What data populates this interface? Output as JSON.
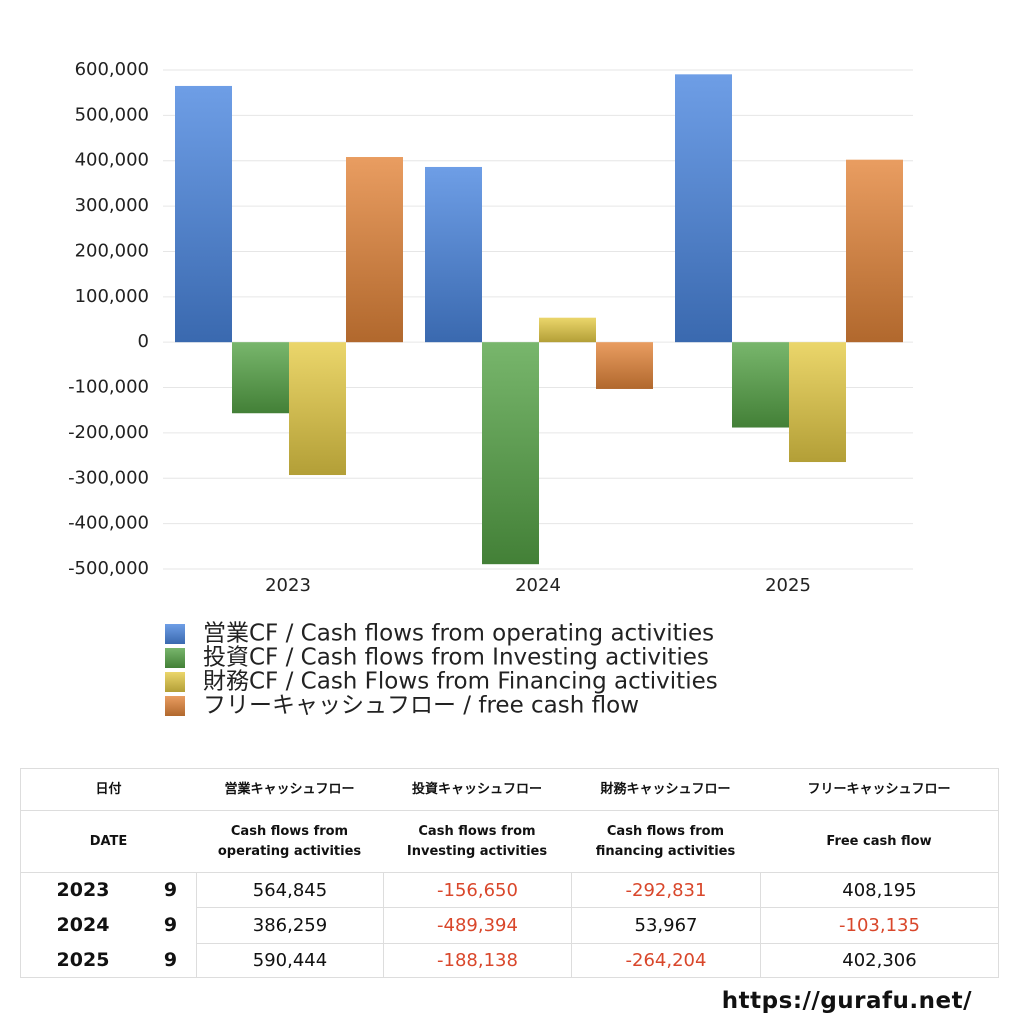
{
  "chart_data": {
    "type": "bar",
    "categories": [
      "2023",
      "2024",
      "2025"
    ],
    "series": [
      {
        "name": "営業CF / Cash flows from operating activities",
        "color": "#4a86e0",
        "values": [
          564845,
          386259,
          590444
        ]
      },
      {
        "name": "投資CF / Cash flows from Investing activities",
        "color": "#56a447",
        "values": [
          -156650,
          -489394,
          -188138
        ]
      },
      {
        "name": "財務CF / Cash Flows from Financing activities",
        "color": "#e6cc46",
        "values": [
          -292831,
          53967,
          -264204
        ]
      },
      {
        "name": "フリーキャッシュフロー / free cash flow",
        "color": "#e3853a",
        "values": [
          408195,
          -103135,
          402306
        ]
      }
    ],
    "ylim": [
      -500000,
      600000
    ],
    "yticks": [
      {
        "value": -500000,
        "label": "-500,000"
      },
      {
        "value": -400000,
        "label": "-400,000"
      },
      {
        "value": -300000,
        "label": "-300,000"
      },
      {
        "value": -200000,
        "label": "-200,000"
      },
      {
        "value": -100000,
        "label": "-100,000"
      },
      0,
      {
        "value": 100000,
        "label": "100,000"
      },
      {
        "value": 200000,
        "label": "200,000"
      },
      {
        "value": 300000,
        "label": "300,000"
      },
      {
        "value": 400000,
        "label": "400,000"
      },
      {
        "value": 500000,
        "label": "500,000"
      },
      {
        "value": 600000,
        "label": "600,000"
      }
    ],
    "grid": true
  },
  "table": {
    "header": [
      [
        "日付",
        "営業キャッシュフロー",
        "投資キャッシュフロー",
        "財務キャッシュフロー",
        "フリーキャッシュフロー"
      ],
      [
        "DATE",
        "Cash flows from operating activities",
        "Cash flows from Investing activities",
        "Cash flows from financing activities",
        "Free cash flow"
      ]
    ],
    "rows": [
      [
        "2023",
        "9",
        "564,845",
        "-156,650",
        "-292,831",
        "408,195"
      ],
      [
        "2024",
        "9",
        "386,259",
        "-489,394",
        "53,967",
        "-103,135"
      ],
      [
        "2025",
        "9",
        "590,444",
        "-188,138",
        "-264,204",
        "402,306"
      ]
    ]
  },
  "footer": {
    "url": "https://gurafu.net/"
  }
}
